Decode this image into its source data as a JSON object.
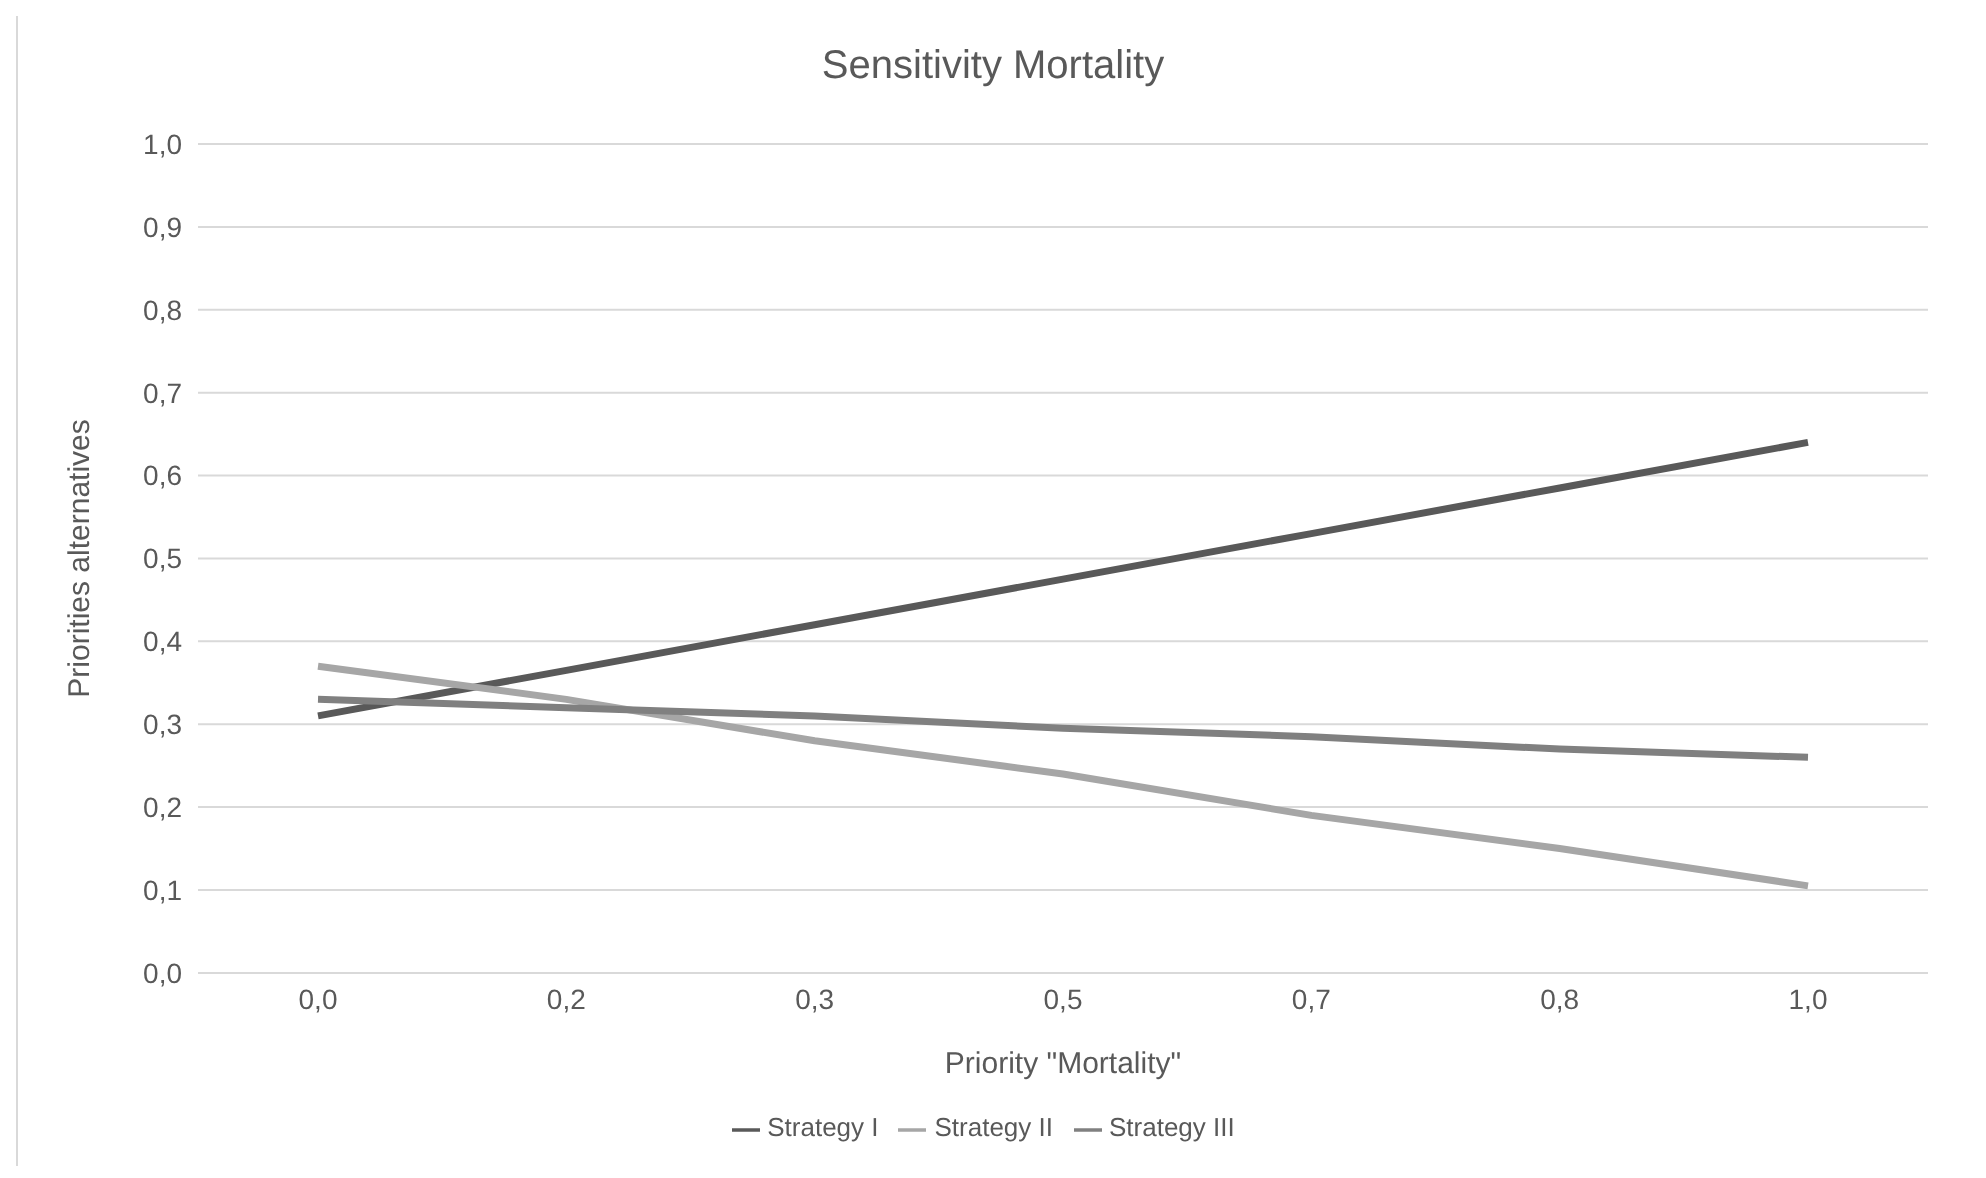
{
  "chart_data": {
    "type": "line",
    "title": "Sensitivity Mortality",
    "xlabel": "Priority \"Mortality\"",
    "ylabel": "Priorities alternatives",
    "categories": [
      "0,0",
      "0,2",
      "0,3",
      "0,5",
      "0,7",
      "0,8",
      "1,0"
    ],
    "series": [
      {
        "name": "Strategy I",
        "color": "#595959",
        "values": [
          0.31,
          0.365,
          0.42,
          0.475,
          0.53,
          0.585,
          0.64
        ]
      },
      {
        "name": "Strategy II",
        "color": "#a6a6a6",
        "values": [
          0.37,
          0.33,
          0.28,
          0.24,
          0.19,
          0.15,
          0.105
        ]
      },
      {
        "name": "Strategy III",
        "color": "#808080",
        "values": [
          0.33,
          0.32,
          0.31,
          0.295,
          0.285,
          0.27,
          0.26
        ]
      }
    ],
    "ylim": [
      0,
      1
    ],
    "yticks": [
      {
        "value": 0,
        "label": "0,0"
      },
      {
        "value": 0.1,
        "label": "0,1"
      },
      {
        "value": 0.2,
        "label": "0,2"
      },
      {
        "value": 0.3,
        "label": "0,3"
      },
      {
        "value": 0.4,
        "label": "0,4"
      },
      {
        "value": 0.5,
        "label": "0,5"
      },
      {
        "value": 0.6,
        "label": "0,6"
      },
      {
        "value": 0.7,
        "label": "0,7"
      },
      {
        "value": 0.8,
        "label": "0,8"
      },
      {
        "value": 0.9,
        "label": "0,9"
      },
      {
        "value": 1,
        "label": "1,0"
      }
    ],
    "grid": "y",
    "legend": "bottom",
    "marker": "none",
    "line_style": "solid"
  }
}
